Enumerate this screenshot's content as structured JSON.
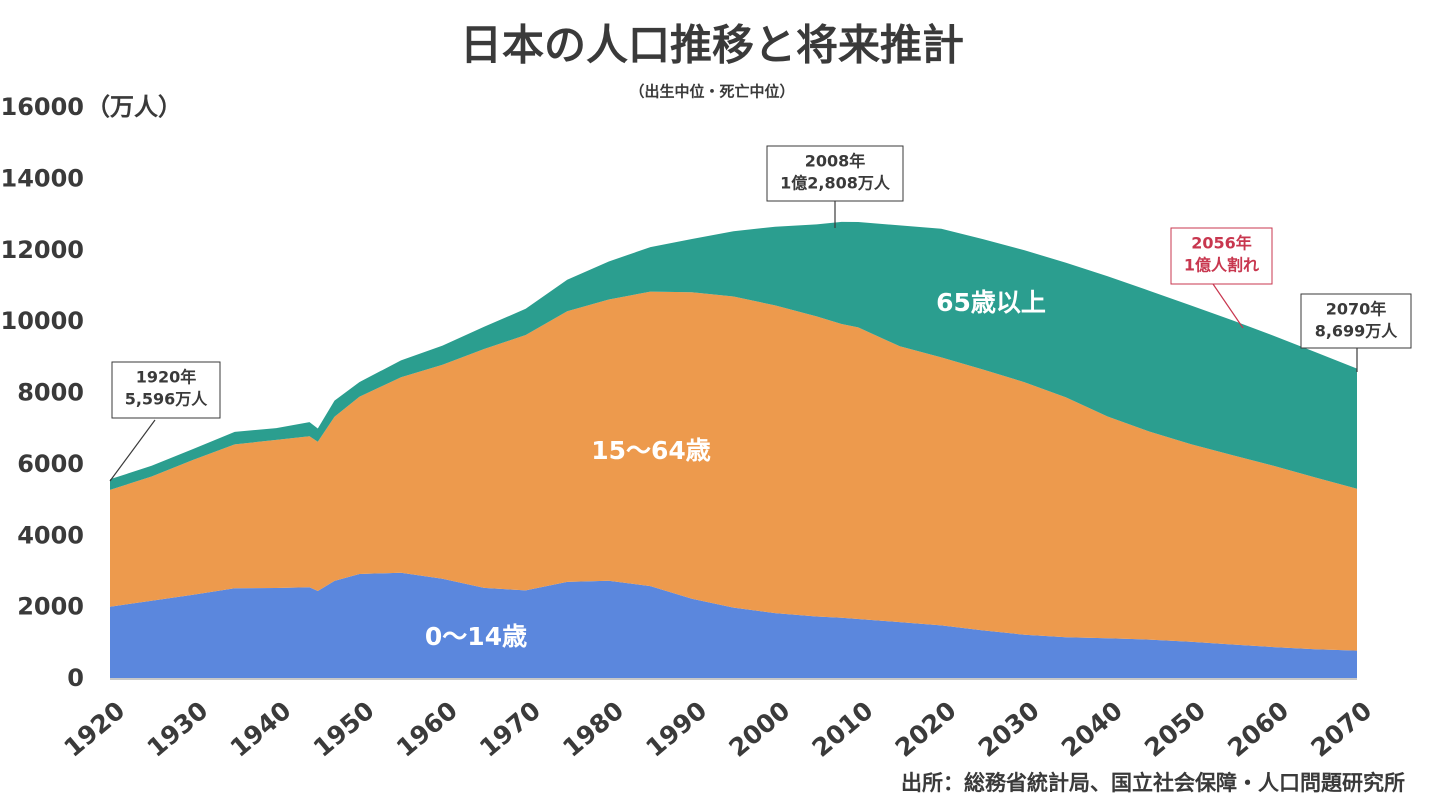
{
  "chart_data": {
    "type": "stacked_area",
    "title": "日本の人口推移と将来推計",
    "subtitle": "（出生中位・死亡中位）",
    "y_unit": "（万人）",
    "source": "出所：総務省統計局、国立社会保障・人口問題研究所",
    "x": [
      1920,
      1925,
      1930,
      1935,
      1940,
      1944,
      1945,
      1947,
      1950,
      1955,
      1960,
      1965,
      1970,
      1975,
      1980,
      1985,
      1990,
      1995,
      2000,
      2005,
      2008,
      2010,
      2015,
      2020,
      2025,
      2030,
      2035,
      2040,
      2045,
      2050,
      2055,
      2060,
      2065,
      2070
    ],
    "series": [
      {
        "name": "0～14歳",
        "color": "#5b87dd",
        "values": [
          2025,
          2192,
          2358,
          2545,
          2550,
          2570,
          2465,
          2750,
          2943,
          2980,
          2807,
          2553,
          2482,
          2722,
          2751,
          2603,
          2249,
          2001,
          1847,
          1752,
          1718,
          1680,
          1595,
          1503,
          1363,
          1240,
          1169,
          1142,
          1103,
          1041,
          966,
          893,
          836,
          797
        ]
      },
      {
        "name": "15～64歳",
        "color": "#ed9a4d",
        "values": [
          3275,
          3482,
          3781,
          4028,
          4150,
          4230,
          4185,
          4600,
          4966,
          5473,
          6000,
          6693,
          7157,
          7581,
          7883,
          8251,
          8590,
          8717,
          8622,
          8409,
          8230,
          8173,
          7728,
          7509,
          7310,
          7076,
          6722,
          6213,
          5832,
          5540,
          5307,
          5078,
          4809,
          4535
        ]
      },
      {
        "name": "65歳以上",
        "color": "#2b9e8f",
        "values": [
          296,
          300,
          306,
          352,
          330,
          400,
          370,
          450,
          411,
          475,
          535,
          624,
          733,
          887,
          1065,
          1247,
          1489,
          1826,
          2204,
          2576,
          2860,
          2953,
          3386,
          3603,
          3653,
          3696,
          3773,
          3929,
          3945,
          3888,
          3778,
          3644,
          3514,
          3367
        ]
      }
    ],
    "xlim": [
      1920,
      2070
    ],
    "xticks": [
      1920,
      1930,
      1940,
      1950,
      1960,
      1970,
      1980,
      1990,
      2000,
      2010,
      2020,
      2030,
      2040,
      2050,
      2060,
      2070
    ],
    "ylim": [
      0,
      16000
    ],
    "yticks": [
      0,
      2000,
      4000,
      6000,
      8000,
      10000,
      12000,
      14000,
      16000
    ],
    "annotations": [
      {
        "lines": [
          "1920年",
          "5,596万人"
        ]
      },
      {
        "lines": [
          "2008年",
          "1億2,808万人"
        ]
      },
      {
        "lines": [
          "2056年",
          "1億人割れ"
        ]
      },
      {
        "lines": [
          "2070年",
          "8,699万人"
        ]
      }
    ]
  }
}
